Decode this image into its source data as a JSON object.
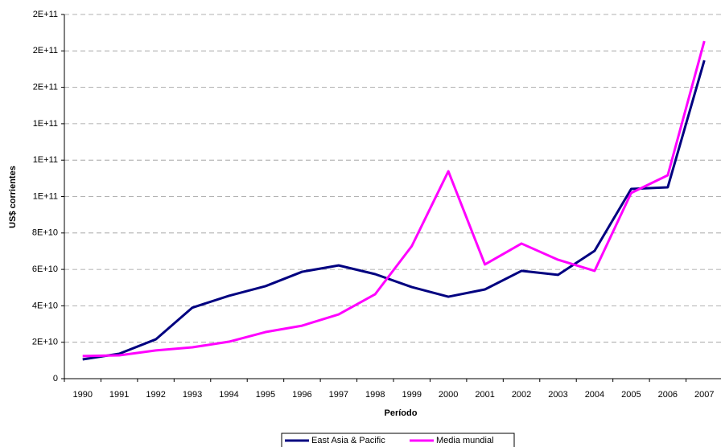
{
  "chart_data": {
    "type": "line",
    "x_label": "Período",
    "y_label": "US$ corrientes",
    "categories": [
      "1990",
      "1991",
      "1992",
      "1993",
      "1994",
      "1995",
      "1996",
      "1997",
      "1998",
      "1999",
      "2000",
      "2001",
      "2002",
      "2003",
      "2004",
      "2005",
      "2006",
      "2007"
    ],
    "series": [
      {
        "name": "East Asia & Pacific",
        "color": "#000080",
        "values": [
          10600000000,
          13700000000,
          21600000000,
          39000000000,
          45500000000,
          50800000000,
          58700000000,
          62200000000,
          57400000000,
          50300000000,
          45000000000,
          49000000000,
          59200000000,
          57000000000,
          70200000000,
          104200000000,
          105100000000,
          174800000000
        ]
      },
      {
        "name": "Media mundial",
        "color": "#ff00ff",
        "values": [
          12400000000,
          12800000000,
          15500000000,
          17200000000,
          20300000000,
          25600000000,
          29100000000,
          35300000000,
          46400000000,
          72800000000,
          113900000000,
          62700000000,
          74200000000,
          65300000000,
          59200000000,
          102000000000,
          111700000000,
          185400000000
        ]
      }
    ],
    "ylim": [
      0,
      200000000000
    ],
    "yticks": [
      0,
      {
        "value": 20000000000,
        "label": "2E+10"
      },
      {
        "value": 40000000000,
        "label": "4E+10"
      },
      {
        "value": 60000000000,
        "label": "6E+10"
      },
      {
        "value": 80000000000,
        "label": "8E+10"
      },
      {
        "value": 100000000000,
        "label": "1E+11"
      },
      {
        "value": 120000000000,
        "label": "1E+11"
      },
      {
        "value": 140000000000,
        "label": "1E+11"
      },
      {
        "value": 160000000000,
        "label": "2E+11"
      },
      {
        "value": 180000000000,
        "label": "2E+11"
      },
      {
        "value": 200000000000,
        "label": "2E+11"
      }
    ],
    "grid": true,
    "legend_position": "bottom"
  }
}
